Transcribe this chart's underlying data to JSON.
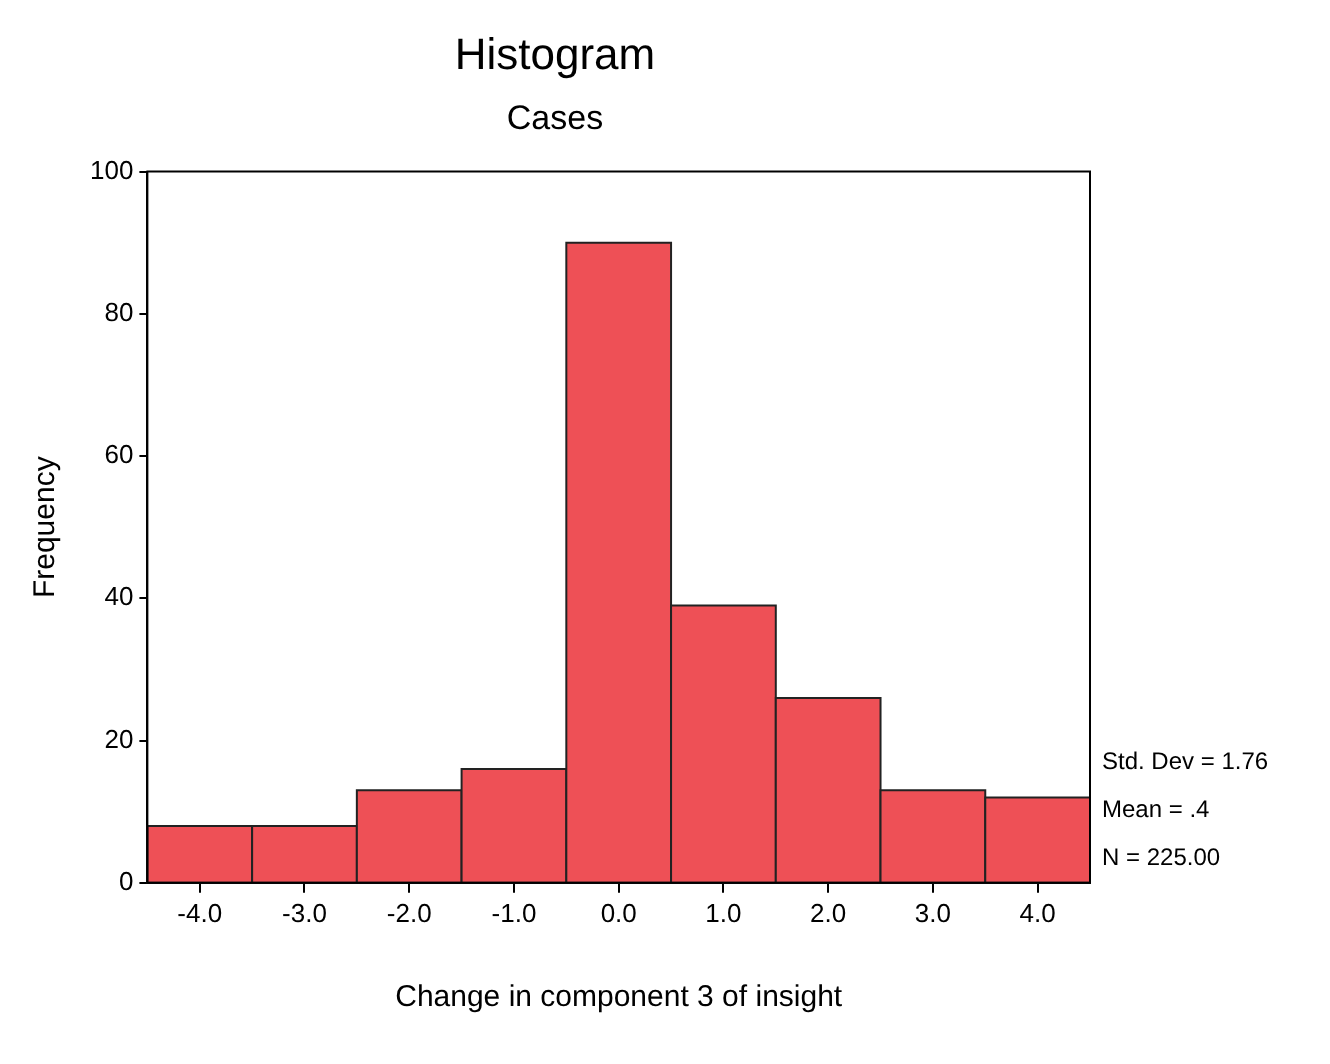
{
  "chart_data": {
    "type": "histogram",
    "title": "Histogram",
    "subtitle": "Cases",
    "xlabel": "Change in component 3 of insight",
    "ylabel": "Frequency",
    "bins": [
      -4.5,
      -3.5,
      -2.5,
      -1.5,
      -0.5,
      0.5,
      1.5,
      2.5,
      3.5,
      4.5
    ],
    "values": [
      8,
      8,
      13,
      16,
      90,
      39,
      26,
      13,
      12
    ],
    "color": "#ee5056",
    "xlim": [
      -4.5,
      4.5
    ],
    "xticks": [
      {
        "value": -4,
        "label": "-4.0"
      },
      {
        "value": -3,
        "label": "-3.0"
      },
      {
        "value": -2,
        "label": "-2.0"
      },
      {
        "value": -1,
        "label": "-1.0"
      },
      {
        "value": 0,
        "label": "0.0"
      },
      {
        "value": 1,
        "label": "1.0"
      },
      {
        "value": 2,
        "label": "2.0"
      },
      {
        "value": 3,
        "label": "3.0"
      },
      {
        "value": 4,
        "label": "4.0"
      }
    ],
    "ylim": [
      0,
      100
    ],
    "yticks": [
      0,
      20,
      40,
      60,
      80,
      100
    ],
    "grid": false,
    "legend": false,
    "annotations": [
      "Std. Dev = 1.76",
      "Mean = .4",
      "N = 225.00"
    ]
  }
}
